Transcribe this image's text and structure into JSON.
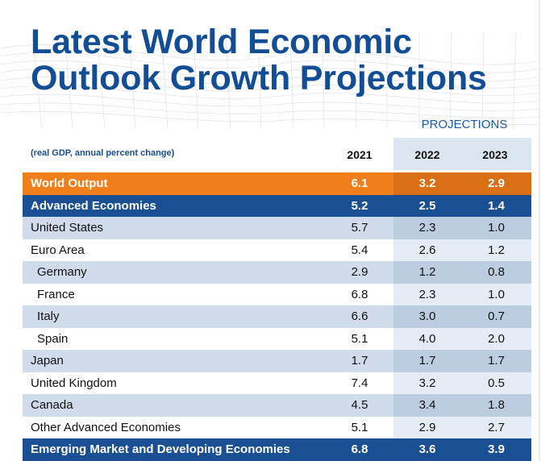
{
  "title_line1": "Latest World Economic",
  "title_line2": "Outlook Growth Projections",
  "projections_label": "PROJECTIONS",
  "subtitle": "(real GDP, annual percent change)",
  "years": [
    "2021",
    "2022",
    "2023"
  ],
  "colors": {
    "title": "#134d93",
    "orange": "#ef7f1a",
    "dark_blue": "#1a4f93",
    "light_blue": "#d0dcec"
  },
  "chart_data": {
    "type": "table",
    "title": "Latest World Economic Outlook Growth Projections",
    "subtitle": "(real GDP, annual percent change)",
    "column_group": "PROJECTIONS",
    "columns": [
      "2021",
      "2022",
      "2023"
    ],
    "rows": [
      {
        "label": "World Output",
        "values": [
          "6.1",
          "3.2",
          "2.9"
        ],
        "style": "orange",
        "indent": false
      },
      {
        "label": "Advanced Economies",
        "values": [
          "5.2",
          "2.5",
          "1.4"
        ],
        "style": "blue",
        "indent": false
      },
      {
        "label": "United States",
        "values": [
          "5.7",
          "2.3",
          "1.0"
        ],
        "style": "light",
        "indent": false
      },
      {
        "label": "Euro Area",
        "values": [
          "5.4",
          "2.6",
          "1.2"
        ],
        "style": "white",
        "indent": false
      },
      {
        "label": "Germany",
        "values": [
          "2.9",
          "1.2",
          "0.8"
        ],
        "style": "light",
        "indent": true
      },
      {
        "label": "France",
        "values": [
          "6.8",
          "2.3",
          "1.0"
        ],
        "style": "white",
        "indent": true
      },
      {
        "label": "Italy",
        "values": [
          "6.6",
          "3.0",
          "0.7"
        ],
        "style": "light",
        "indent": true
      },
      {
        "label": "Spain",
        "values": [
          "5.1",
          "4.0",
          "2.0"
        ],
        "style": "white",
        "indent": true
      },
      {
        "label": "Japan",
        "values": [
          "1.7",
          "1.7",
          "1.7"
        ],
        "style": "light",
        "indent": false
      },
      {
        "label": "United Kingdom",
        "values": [
          "7.4",
          "3.2",
          "0.5"
        ],
        "style": "white",
        "indent": false
      },
      {
        "label": "Canada",
        "values": [
          "4.5",
          "3.4",
          "1.8"
        ],
        "style": "light",
        "indent": false
      },
      {
        "label": "Other Advanced Economies",
        "values": [
          "5.1",
          "2.9",
          "2.7"
        ],
        "style": "white",
        "indent": false
      },
      {
        "label": "Emerging Market and Developing Economies",
        "values": [
          "6.8",
          "3.6",
          "3.9"
        ],
        "style": "blue",
        "indent": false
      }
    ]
  }
}
